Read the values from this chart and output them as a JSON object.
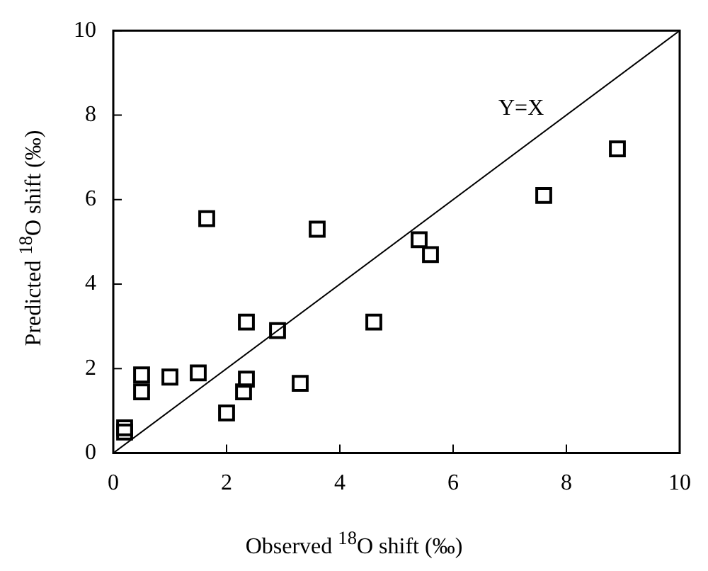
{
  "chart_data": {
    "type": "scatter",
    "xlabel": "Observed $^{18}$O shift (‰)",
    "ylabel": "Predicted $^{18}$O shift (‰)",
    "xlim": [
      0,
      10
    ],
    "ylim": [
      0,
      10
    ],
    "xticks": [
      0,
      2,
      4,
      6,
      8,
      10
    ],
    "yticks": [
      0,
      2,
      4,
      6,
      8,
      10
    ],
    "grid": false,
    "legend": false,
    "marker": "square",
    "series": [
      {
        "color": "#000000",
        "x": [
          0.2,
          0.2,
          0.5,
          0.5,
          1.0,
          1.5,
          1.65,
          2.0,
          2.35,
          2.35,
          2.3,
          2.9,
          3.3,
          3.6,
          4.6,
          5.4,
          5.6,
          7.6,
          8.9
        ],
        "values": [
          0.6,
          0.5,
          1.85,
          1.45,
          1.8,
          1.9,
          5.55,
          0.95,
          3.1,
          1.75,
          1.45,
          2.9,
          1.65,
          5.3,
          3.1,
          5.05,
          4.7,
          6.1,
          7.2
        ]
      },
      {
        "type": "line",
        "color": "#000000",
        "marker": "none",
        "x": [
          0,
          10
        ],
        "values": [
          0,
          10
        ]
      }
    ],
    "annotations": [
      "Y=X"
    ]
  }
}
